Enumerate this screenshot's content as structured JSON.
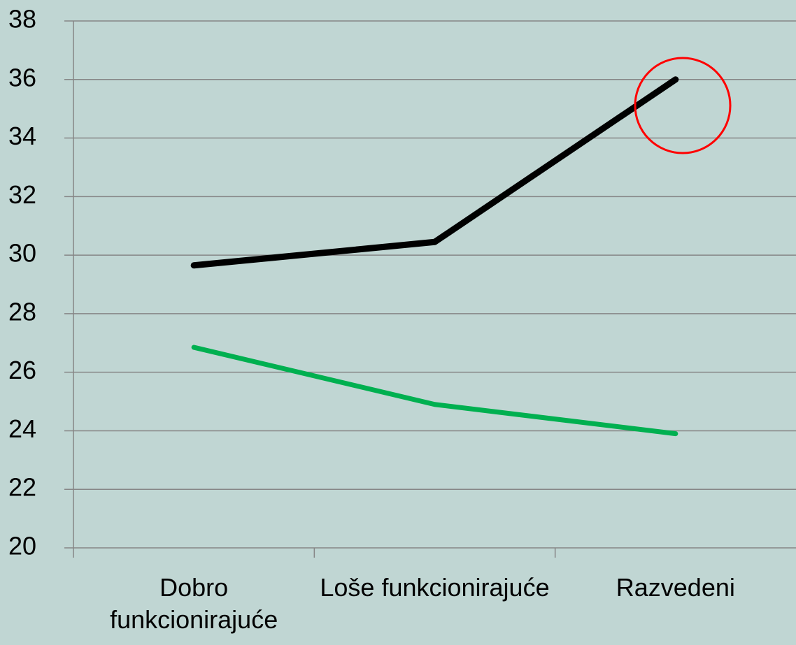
{
  "chart_data": {
    "type": "line",
    "categories": [
      "Dobro funkcionirajuće",
      "Loše funkcionirajuće",
      "Razvedeni"
    ],
    "series": [
      {
        "color": "#000000",
        "values": [
          29.65,
          30.45,
          36
        ]
      },
      {
        "color": "#00b050",
        "values": [
          26.85,
          24.9,
          23.9
        ]
      }
    ],
    "ylim": [
      20,
      38
    ],
    "yticks": [
      20,
      22,
      24,
      26,
      28,
      30,
      32,
      34,
      36,
      38
    ],
    "grid": true
  }
}
